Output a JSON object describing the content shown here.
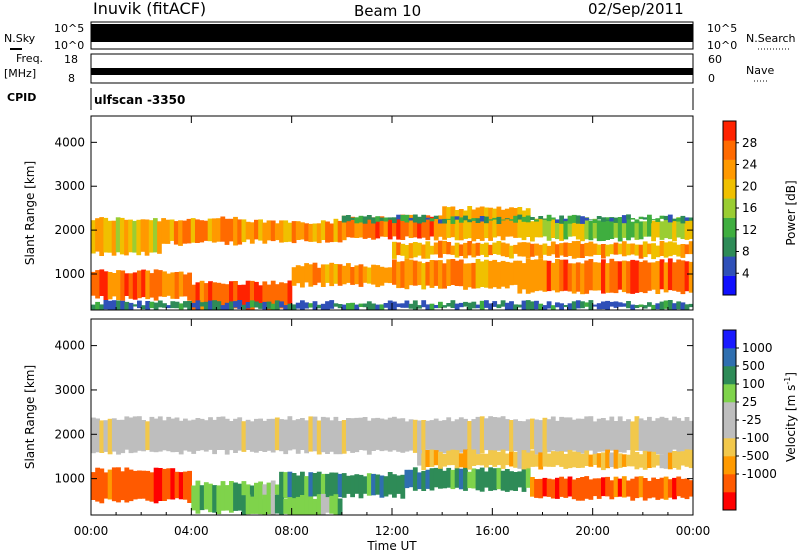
{
  "header": {
    "station": "Inuvik (fitACF)",
    "beam": "Beam 10",
    "date": "02/Sep/2011"
  },
  "panel_labels": {
    "nsky": "N.Sky",
    "nsearch": "N.Search",
    "freq": "Freq.",
    "mhz": "[MHz]",
    "nave": "Nave",
    "cpid": "CPID",
    "cpid_value": "ulfscan -3350",
    "nsky_top": "10^5",
    "nsky_bottom": "10^0",
    "nsearch_top": "10^5",
    "nsearch_bottom": "10^0",
    "freq_top": "18",
    "freq_bottom": "8",
    "nave_top": "60",
    "nave_bottom": "0"
  },
  "colors": {
    "power_scale": [
      "#1010ff",
      "#2f50b8",
      "#2e8b57",
      "#3fae3f",
      "#9acd32",
      "#f0c000",
      "#ff9900",
      "#ff6a00",
      "#ff2200"
    ],
    "velocity_scale": [
      "#ff0000",
      "#ff5a00",
      "#ff9a00",
      "#f2c84b",
      "#bebebe",
      "#bebebe",
      "#7fd34b",
      "#2e8b57",
      "#2f6fb0",
      "#1a1aff"
    ]
  },
  "chart_data": [
    {
      "type": "heatmap",
      "name": "power",
      "xlabel": "",
      "ylabel": "Slant Range [km]",
      "x_ticks": [
        "00:00",
        "04:00",
        "08:00",
        "12:00",
        "16:00",
        "20:00",
        "00:00"
      ],
      "x_range_hours": [
        0,
        24
      ],
      "y_ticks": [
        1000,
        2000,
        3000,
        4000
      ],
      "ylim": [
        180,
        4600
      ],
      "colorbar_label": "Power [dB]",
      "colorbar_ticks": [
        4,
        8,
        12,
        16,
        20,
        24,
        28
      ],
      "colorbar_range": [
        0,
        32
      ],
      "bands": [
        {
          "t0": 0.0,
          "t1": 2.8,
          "r0": 1450,
          "r1": 2250,
          "v": 20
        },
        {
          "t0": 2.8,
          "t1": 6.0,
          "r0": 1700,
          "r1": 2250,
          "v": 25
        },
        {
          "t0": 6.0,
          "t1": 10.0,
          "r0": 1750,
          "r1": 2200,
          "v": 22
        },
        {
          "t0": 10.0,
          "t1": 14.0,
          "r0": 1800,
          "r1": 2300,
          "v": 26
        },
        {
          "t0": 14.0,
          "t1": 17.5,
          "r0": 1800,
          "r1": 2500,
          "v": 22
        },
        {
          "t0": 17.5,
          "t1": 24.0,
          "r0": 1800,
          "r1": 2250,
          "v": 16
        },
        {
          "t0": 0.0,
          "t1": 4.0,
          "r0": 450,
          "r1": 1050,
          "v": 27
        },
        {
          "t0": 4.0,
          "t1": 8.0,
          "r0": 200,
          "r1": 800,
          "v": 28
        },
        {
          "t0": 8.0,
          "t1": 12.0,
          "r0": 750,
          "r1": 1200,
          "v": 22
        },
        {
          "t0": 12.0,
          "t1": 17.0,
          "r0": 700,
          "r1": 1300,
          "v": 24
        },
        {
          "t0": 17.0,
          "t1": 24.0,
          "r0": 600,
          "r1": 1300,
          "v": 26
        },
        {
          "t0": 12.0,
          "t1": 24.0,
          "r0": 1400,
          "r1": 1700,
          "v": 23
        },
        {
          "t0": 10.0,
          "t1": 24.0,
          "r0": 2200,
          "r1": 2300,
          "v": 10
        },
        {
          "t0": 0.0,
          "t1": 24.0,
          "r0": 200,
          "r1": 350,
          "v": 8
        }
      ]
    },
    {
      "type": "heatmap",
      "name": "velocity",
      "xlabel": "Time UT",
      "ylabel": "Slant Range [km]",
      "x_ticks": [
        "00:00",
        "04:00",
        "08:00",
        "12:00",
        "16:00",
        "20:00",
        "00:00"
      ],
      "x_range_hours": [
        0,
        24
      ],
      "y_ticks": [
        1000,
        2000,
        3000,
        4000
      ],
      "ylim": [
        180,
        4600
      ],
      "colorbar_label": "Velocity [m s^-1]",
      "colorbar_ticks": [
        "1000",
        "500",
        "100",
        "25",
        "-25",
        "-100",
        "-500",
        "-1000"
      ],
      "bands": [
        {
          "t0": 0.0,
          "t1": 24.0,
          "r0": 1600,
          "r1": 2350,
          "v": 4
        },
        {
          "t0": 0.0,
          "t1": 4.0,
          "r0": 500,
          "r1": 1200,
          "v": 1
        },
        {
          "t0": 4.0,
          "t1": 7.5,
          "r0": 250,
          "r1": 900,
          "v": 6
        },
        {
          "t0": 7.5,
          "t1": 12.5,
          "r0": 600,
          "r1": 1100,
          "v": 7
        },
        {
          "t0": 12.5,
          "t1": 17.5,
          "r0": 750,
          "r1": 1200,
          "v": 7
        },
        {
          "t0": 17.5,
          "t1": 24.0,
          "r0": 550,
          "r1": 1000,
          "v": 1
        },
        {
          "t0": 6.0,
          "t1": 10.0,
          "r0": 180,
          "r1": 600,
          "v": 6
        },
        {
          "t0": 13.0,
          "t1": 24.0,
          "r0": 1250,
          "r1": 1600,
          "v": 3
        }
      ]
    }
  ]
}
